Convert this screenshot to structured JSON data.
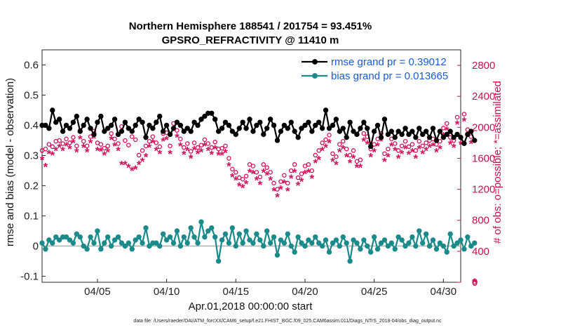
{
  "chart_data": {
    "type": "line",
    "title": [
      "Northern Hemisphere 188541 / 201754 = 93.451%",
      "GPSRO_REFRACTIVITY @ 11410 m"
    ],
    "xlabel": "Apr.01,2018 00:00:00 start",
    "ylabel": "rmse and bias (model - observation)",
    "y2label": "# of obs: o=possible; *=assimilated",
    "footnote": "data file: /Users/raeder/DAI/ATM_forcXX/CAM6_setup/f.e21.FHIST_BGC.f09_025.CAM6assim.011/Diags_NTrS_2018-04/obs_diag_output.nc",
    "xlim": [
      1,
      31.25
    ],
    "ylim": [
      -0.12,
      0.65
    ],
    "y2lim": [
      0,
      3000
    ],
    "xticks": [
      {
        "value": 5,
        "label": "04/05"
      },
      {
        "value": 10,
        "label": "04/10"
      },
      {
        "value": 15,
        "label": "04/15"
      },
      {
        "value": 20,
        "label": "04/20"
      },
      {
        "value": 25,
        "label": "04/25"
      },
      {
        "value": 30,
        "label": "04/30"
      }
    ],
    "yticks": [
      "-0.1",
      "0",
      "0.1",
      "0.2",
      "0.3",
      "0.4",
      "0.5",
      "0.6"
    ],
    "y2ticks": [
      "0",
      "400",
      "800",
      "1200",
      "1600",
      "2000",
      "2400",
      "2800"
    ],
    "zero_line": 0,
    "legend_position": "top-right",
    "colors": {
      "rmse": "#000000",
      "bias": "#1a8a8a",
      "obs": "#d0105a",
      "zero": "#b4b4b4",
      "legend_text": "#1a5bd6"
    },
    "series": [
      {
        "name": "rmse grand pr = 0.39012",
        "key": "rmse",
        "x_start": 1,
        "dx": 0.25,
        "values": [
          0.4,
          0.4,
          0.39,
          0.45,
          0.41,
          0.42,
          0.38,
          0.4,
          0.39,
          0.41,
          0.43,
          0.38,
          0.4,
          0.42,
          0.39,
          0.37,
          0.41,
          0.43,
          0.38,
          0.39,
          0.4,
          0.42,
          0.37,
          0.38,
          0.41,
          0.39,
          0.38,
          0.4,
          0.42,
          0.41,
          0.36,
          0.4,
          0.39,
          0.41,
          0.43,
          0.38,
          0.4,
          0.37,
          0.39,
          0.41,
          0.4,
          0.38,
          0.39,
          0.38,
          0.41,
          0.4,
          0.42,
          0.43,
          0.44,
          0.44,
          0.42,
          0.38,
          0.39,
          0.41,
          0.4,
          0.38,
          0.37,
          0.39,
          0.41,
          0.39,
          0.42,
          0.38,
          0.4,
          0.41,
          0.37,
          0.39,
          0.42,
          0.4,
          0.35,
          0.38,
          0.4,
          0.39,
          0.41,
          0.38,
          0.36,
          0.39,
          0.4,
          0.41,
          0.38,
          0.4,
          0.41,
          0.39,
          0.45,
          0.39,
          0.4,
          0.42,
          0.38,
          0.39,
          0.36,
          0.41,
          0.38,
          0.37,
          0.39,
          0.41,
          0.39,
          0.33,
          0.38,
          0.4,
          0.36,
          0.42,
          0.37,
          0.38,
          0.36,
          0.38,
          0.37,
          0.39,
          0.37,
          0.38,
          0.36,
          0.39,
          0.37,
          0.38,
          0.36,
          0.39,
          0.35,
          0.38,
          0.36,
          0.37,
          0.38,
          0.36,
          0.37,
          0.36,
          0.34,
          0.37,
          0.38,
          0.35
        ]
      },
      {
        "name": "bias grand pr = 0.013665",
        "key": "bias",
        "x_start": 1,
        "dx": 0.25,
        "values": [
          0.01,
          -0.01,
          0.02,
          0.01,
          0.03,
          0.02,
          0.03,
          0.03,
          0.02,
          0.01,
          0.04,
          0.03,
          0.0,
          -0.01,
          0.03,
          0.01,
          0.05,
          -0.01,
          0.01,
          0.03,
          0.0,
          0.02,
          0.03,
          0.01,
          0.0,
          0.01,
          -0.01,
          0.02,
          0.03,
          0.01,
          0.06,
          0.0,
          0.01,
          0.01,
          0.0,
          0.04,
          0.02,
          0.03,
          0.01,
          0.05,
          0.0,
          0.03,
          0.01,
          0.06,
          0.03,
          0.01,
          0.08,
          0.03,
          0.05,
          0.06,
          0.03,
          -0.05,
          0.02,
          0.04,
          0.01,
          0.06,
          0.0,
          0.04,
          0.01,
          0.05,
          0.02,
          0.01,
          0.04,
          0.02,
          0.0,
          0.05,
          0.01,
          0.03,
          -0.03,
          0.02,
          0.01,
          0.04,
          0.0,
          -0.02,
          0.03,
          0.01,
          0.0,
          0.02,
          0.01,
          0.03,
          0.01,
          0.0,
          0.02,
          -0.02,
          0.01,
          0.02,
          0.0,
          0.03,
          0.01,
          -0.05,
          0.02,
          0.01,
          -0.01,
          0.02,
          0.0,
          -0.02,
          0.03,
          -0.01,
          0.01,
          0.02,
          0.0,
          0.01,
          -0.01,
          0.03,
          0.02,
          0.0,
          0.01,
          0.03,
          0.0,
          0.05,
          0.01,
          0.04,
          0.0,
          0.02,
          -0.01,
          0.01,
          0.0,
          -0.02,
          0.04,
          0.0,
          0.01,
          0.02,
          -0.01,
          0.03,
          0.0,
          0.01
        ]
      },
      {
        "name": "possible",
        "key": "obs_possible",
        "marker": "o",
        "axis": "right",
        "x_start": 1,
        "dx": 0.25,
        "values": [
          1700,
          1720,
          1780,
          1750,
          1820,
          1830,
          1790,
          1850,
          1800,
          1870,
          1760,
          1960,
          1820,
          1760,
          1880,
          1950,
          1800,
          1780,
          1730,
          1760,
          1920,
          1850,
          1790,
          2010,
          1830,
          1770,
          1880,
          1840,
          1640,
          1700,
          1760,
          1820,
          1880,
          1800,
          1750,
          1920,
          1930,
          1760,
          2050,
          1960,
          1850,
          1740,
          1790,
          1690,
          1800,
          1740,
          1770,
          1840,
          1790,
          1740,
          1810,
          1720,
          1730,
          1760,
          1600,
          1460,
          1420,
          1350,
          1330,
          1370,
          1520,
          1500,
          1420,
          1360,
          1520,
          1480,
          1420,
          1280,
          1200,
          1300,
          1380,
          1280,
          1440,
          1520,
          1350,
          1400,
          1500,
          1520,
          1440,
          1640,
          1700,
          1800,
          1840,
          1900,
          1660,
          1620,
          1780,
          1820,
          1720,
          1640,
          1700,
          1560,
          1580,
          1920,
          1880,
          1720,
          1780,
          1850,
          1920,
          1660,
          1720,
          1850,
          1790,
          1700,
          1760,
          1820,
          1750,
          1780,
          1700,
          1820,
          1760,
          1800,
          1830,
          1850,
          1780,
          1820,
          1990,
          2050,
          1870,
          1830,
          2130,
          1870,
          2170,
          1970,
          1880,
          0
        ]
      },
      {
        "name": "assimilated",
        "key": "obs_assimilated",
        "marker": "*",
        "axis": "right",
        "x_start": 1,
        "dx": 0.25,
        "values": [
          1580,
          1490,
          1660,
          1640,
          1700,
          1740,
          1700,
          1760,
          1720,
          1800,
          1680,
          1850,
          1740,
          1680,
          1800,
          1860,
          1700,
          1690,
          1640,
          1680,
          1840,
          1760,
          1700,
          1520,
          1520,
          1480,
          1440,
          1460,
          1520,
          1560,
          1620,
          1740,
          1800,
          1700,
          1660,
          1820,
          1840,
          1660,
          1960,
          1870,
          1760,
          1650,
          1700,
          1600,
          1710,
          1660,
          1680,
          1760,
          1700,
          1650,
          1720,
          1640,
          1640,
          1670,
          1500,
          1360,
          1320,
          1240,
          1220,
          1270,
          1420,
          1400,
          1320,
          1260,
          1420,
          1380,
          1320,
          1180,
          1100,
          1200,
          1280,
          1180,
          1340,
          1420,
          1250,
          1300,
          1400,
          1420,
          1340,
          1540,
          1580,
          1700,
          1740,
          1800,
          1560,
          1520,
          1680,
          1720,
          1620,
          1540,
          1600,
          1480,
          1480,
          1820,
          1780,
          1620,
          1680,
          1760,
          1820,
          1560,
          1620,
          1760,
          1700,
          1600,
          1660,
          1720,
          1650,
          1680,
          1600,
          1720,
          1660,
          1700,
          1740,
          1760,
          1680,
          1720,
          1890,
          1960,
          1780,
          1740,
          2040,
          1780,
          2080,
          1880,
          1790,
          0
        ]
      }
    ]
  }
}
